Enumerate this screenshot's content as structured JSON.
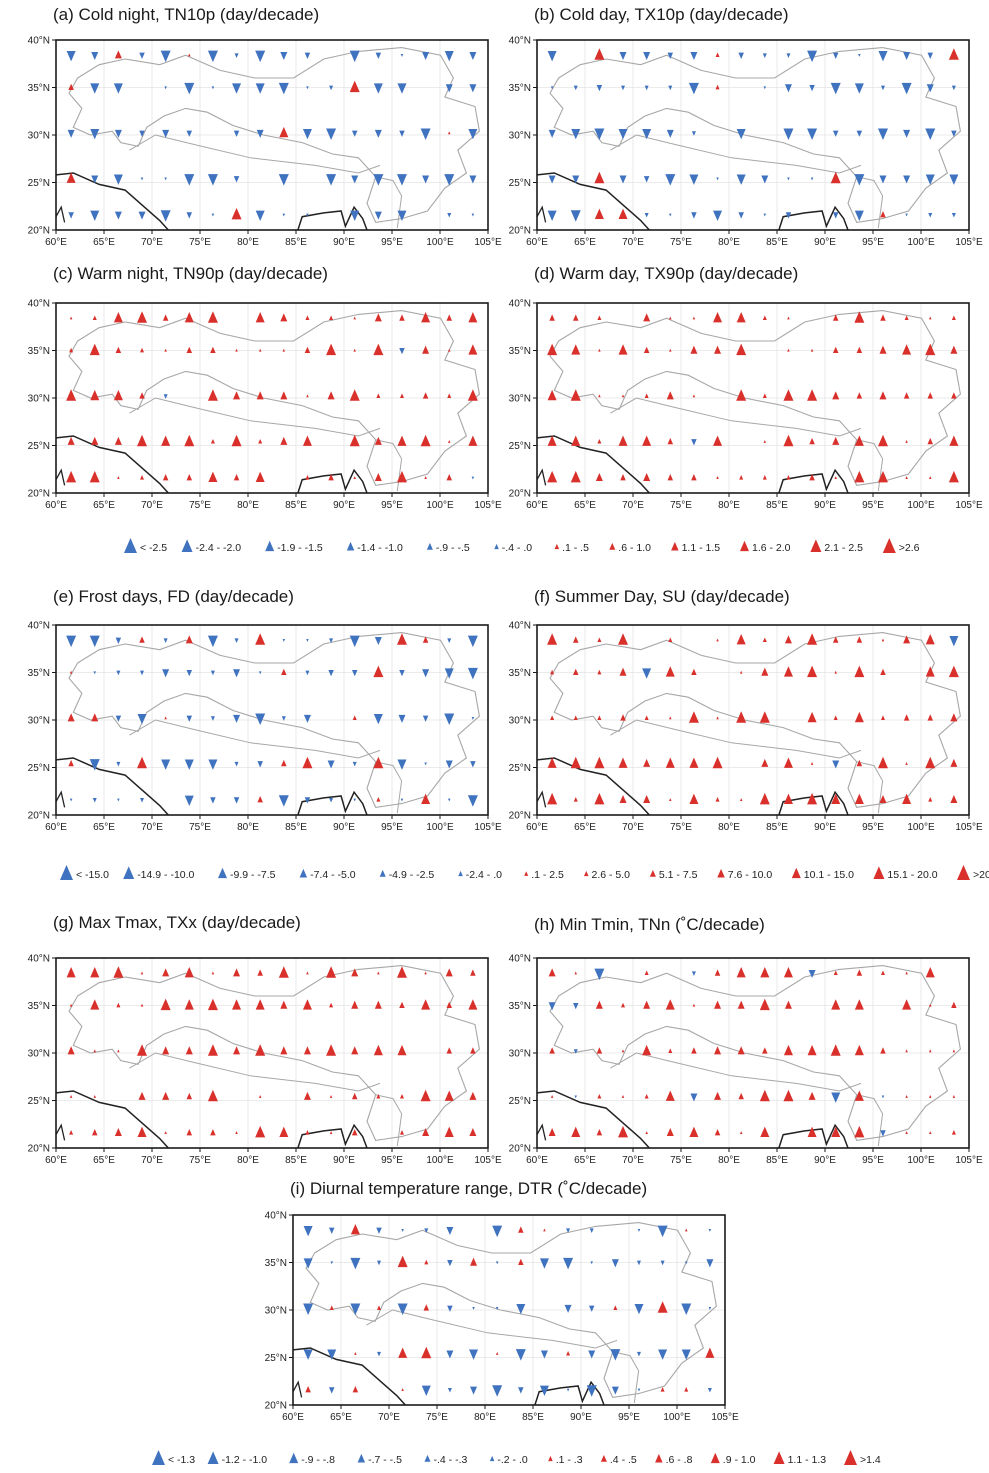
{
  "colors": {
    "increase": "#d9302b",
    "decrease": "#3f72bf",
    "frame": "#1a1a1a",
    "border": "#a7a7a7",
    "coast": "#222222",
    "grid": "#e4e4e4"
  },
  "panels": [
    {
      "id": "a",
      "title": "(a) Cold night, TN10p (day/decade)",
      "scale": "percentile"
    },
    {
      "id": "b",
      "title": "(b) Cold day, TX10p (day/decade)",
      "scale": "percentile"
    },
    {
      "id": "c",
      "title": "(c) Warm night, TN90p (day/decade)",
      "scale": "percentile"
    },
    {
      "id": "d",
      "title": "(d) Warm day, TX90p (day/decade)",
      "scale": "percentile"
    },
    {
      "id": "e",
      "title": "(e) Frost days, FD (day/decade)",
      "scale": "days"
    },
    {
      "id": "f",
      "title": "(f) Summer Day, SU (day/decade)",
      "scale": "days"
    },
    {
      "id": "g",
      "title": "(g) Max Tmax, TXx (day/decade)",
      "scale": "degc"
    },
    {
      "id": "h",
      "title": "(h) Min Tmin, TNn (˚C/decade)",
      "scale": "degc"
    },
    {
      "id": "i",
      "title": "(i) Diurnal temperature range, DTR (˚C/decade)",
      "scale": "degc"
    }
  ],
  "axes": {
    "lon_labels": [
      "60°E",
      "65°E",
      "70°E",
      "75°E",
      "80°E",
      "85°E",
      "90°E",
      "95°E",
      "100°E",
      "105°E"
    ],
    "lat_labels": [
      "40°N",
      "35°N",
      "30°N",
      "25°N",
      "20°N"
    ],
    "lon_range": [
      60,
      105
    ],
    "lat_range": [
      20,
      40
    ]
  },
  "legends": [
    {
      "id": "percentile",
      "items": [
        "< -2.5",
        "-2.4 - -2.0",
        "-1.9 - -1.5",
        "-1.4 - -1.0",
        "-.9 - -.5",
        "-.4 - .0",
        ".1 - .5",
        ".6 - 1.0",
        "1.1 - 1.5",
        "1.6 - 2.0",
        "2.1 - 2.5",
        ">2.6"
      ]
    },
    {
      "id": "days",
      "items": [
        "< -15.0",
        "-14.9 - -10.0",
        "-9.9 - -7.5",
        "-7.4 - -5.0",
        "-4.9 - -2.5",
        "-2.4 - .0",
        ".1 - 2.5",
        "2.6 - 5.0",
        "5.1 - 7.5",
        "7.6 - 10.0",
        "10.1 - 15.0",
        "15.1 - 20.0",
        ">20.1"
      ]
    },
    {
      "id": "degc",
      "items": [
        "< -1.3",
        "-1.2 - -1.0",
        "-.9 - -.8",
        "-.7 - -.5",
        "-.4 - -.3",
        "-.2 - .0",
        ".1 - .3",
        ".4 - .5",
        ".6 - .8",
        ".9 - 1.0",
        "1.1 - 1.3",
        ">1.4"
      ]
    }
  ]
}
